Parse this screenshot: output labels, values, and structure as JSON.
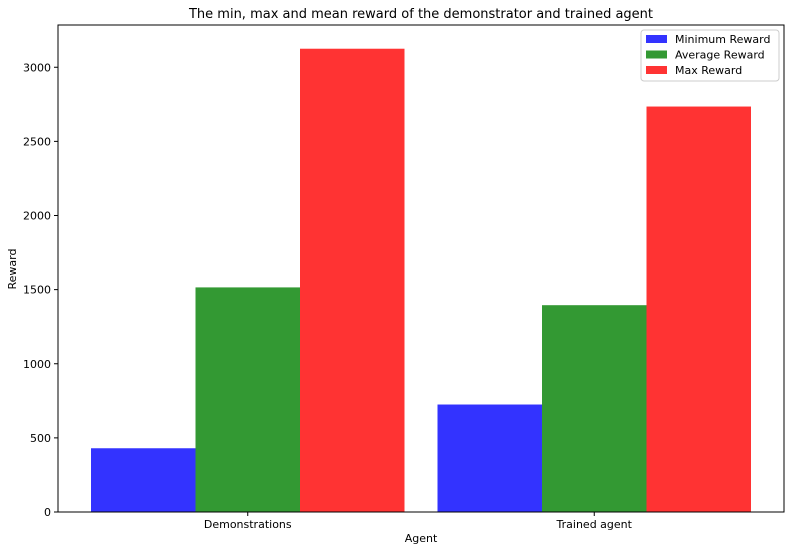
{
  "chart_data": {
    "type": "bar",
    "title": "The min, max and mean reward of the demonstrator and trained agent",
    "xlabel": "Agent",
    "ylabel": "Reward",
    "categories": [
      "Demonstrations",
      "Trained agent"
    ],
    "series": [
      {
        "name": "Minimum Reward",
        "values": [
          430,
          725
        ],
        "color": "#3333ff"
      },
      {
        "name": "Average Reward",
        "values": [
          1515,
          1395
        ],
        "color": "#339933"
      },
      {
        "name": "Max Reward",
        "values": [
          3125,
          2735
        ],
        "color": "#ff3333"
      }
    ],
    "ylim": [
      0,
      3285
    ],
    "yticks": [
      0,
      500,
      1000,
      1500,
      2000,
      2500,
      3000
    ],
    "legend_position": "top-right",
    "grid": false
  }
}
